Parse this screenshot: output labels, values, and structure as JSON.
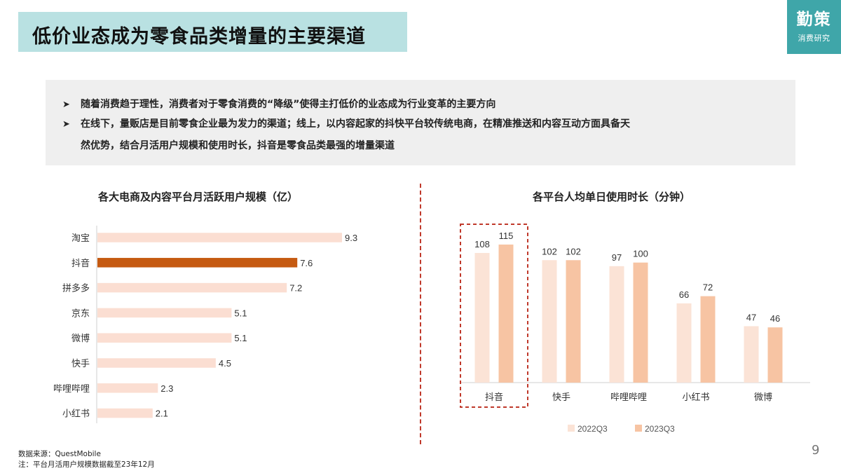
{
  "page": {
    "title": "低价业态成为零食品类增量的主要渠道",
    "logo_main": "勤策",
    "logo_sub": "消费研究",
    "page_number": "9"
  },
  "summary": {
    "bullet_glyph": "➤",
    "item1": "随着消费趋于理性，消费者对于零食消费的“降级”使得主打低价的业态成为行业变革的主要方向",
    "item2": "在线下，量贩店是目前零食企业最为发力的渠道；线上，以内容起家的抖快平台较传统电商，在精准推送和内容互动方面具备天",
    "item2_cont": "然优势，结合月活用户规模和使用时长，抖音是零食品类最强的增量渠道"
  },
  "footer": {
    "source": "数据来源：QuestMobile",
    "note": "注：平台月活用户规模数据截至23年12月"
  },
  "chart_data": [
    {
      "type": "bar",
      "orientation": "horizontal",
      "title": "各大电商及内容平台月活跃用户规模（亿）",
      "categories": [
        "淘宝",
        "抖音",
        "拼多多",
        "京东",
        "微博",
        "快手",
        "哔哩哔哩",
        "小红书"
      ],
      "values": [
        9.3,
        7.6,
        7.2,
        5.1,
        5.1,
        4.5,
        2.3,
        2.1
      ],
      "value_labels": [
        "9.3",
        "7.6",
        "7.2",
        "5.1",
        "5.1",
        "4.5",
        "2.3",
        "2.1"
      ],
      "highlight": "抖音",
      "colors": {
        "default": "#fbded2",
        "highlight": "#c55a11"
      }
    },
    {
      "type": "bar",
      "orientation": "vertical",
      "title": "各平台人均单日使用时长（分钟）",
      "categories": [
        "抖音",
        "快手",
        "哔哩哔哩",
        "小红书",
        "微博"
      ],
      "series": [
        {
          "name": "2022Q3",
          "values": [
            108,
            102,
            97,
            66,
            47
          ],
          "color": "#fbe3d6"
        },
        {
          "name": "2023Q3",
          "values": [
            115,
            102,
            100,
            72,
            46
          ],
          "color": "#f7c4a3"
        }
      ],
      "legend": "bottom",
      "highlight": "抖音",
      "highlight_color": "#c0392b"
    }
  ]
}
